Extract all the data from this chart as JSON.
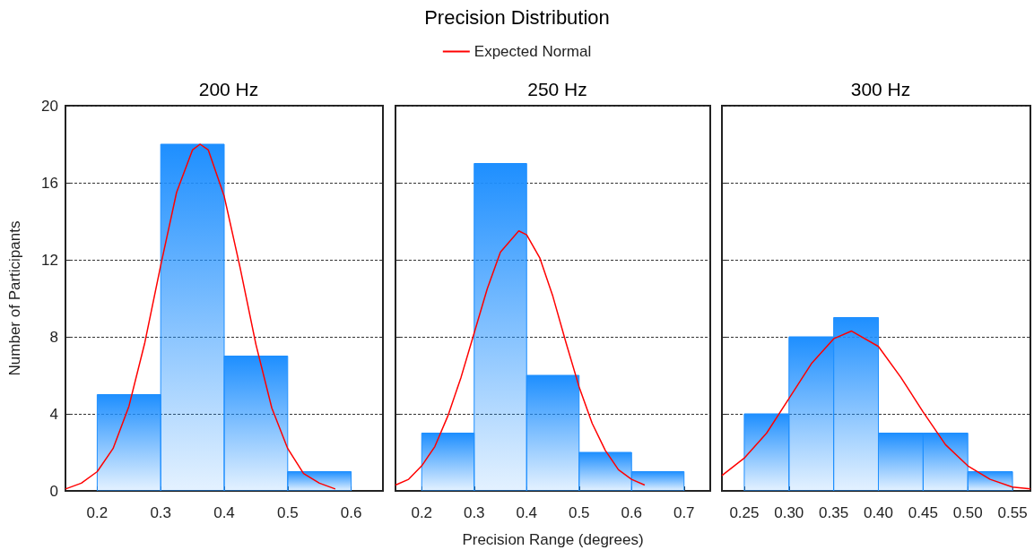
{
  "chart_data": [
    {
      "type": "histogram",
      "title": "200 Hz",
      "ylabel": "Number of Participants",
      "annotations": [
        "Precision Distribution"
      ],
      "legend": "top",
      "grid": "y",
      "xlim": [
        0.15,
        0.65
      ],
      "xticks": [
        0.2,
        0.3,
        0.4,
        0.5,
        0.6
      ],
      "ylim": [
        0,
        20
      ],
      "yticks": [
        0,
        4,
        8,
        12,
        16,
        20
      ],
      "series": [
        {
          "color": "#1e8fff",
          "bins": [
            0.2,
            0.3,
            0.4,
            0.5,
            0.6
          ],
          "values": [
            5,
            18,
            7,
            1
          ]
        },
        {
          "type": "line",
          "name": "Expected Normal",
          "color": "#ff0000",
          "x": [
            0.15,
            0.175,
            0.2,
            0.225,
            0.25,
            0.275,
            0.3,
            0.325,
            0.35,
            0.362,
            0.375,
            0.4,
            0.425,
            0.45,
            0.475,
            0.5,
            0.525,
            0.55,
            0.575
          ],
          "values": [
            0.1,
            0.4,
            1.0,
            2.2,
            4.4,
            7.7,
            11.7,
            15.5,
            17.7,
            18,
            17.7,
            15.3,
            11.6,
            7.6,
            4.3,
            2.2,
            0.9,
            0.4,
            0.1
          ]
        }
      ]
    },
    {
      "type": "histogram",
      "title": "250 Hz",
      "xlabel": "Precision Range (degrees)",
      "grid": "y",
      "tick_labels": "x",
      "xlim": [
        0.15,
        0.75
      ],
      "xticks": [
        0.2,
        0.3,
        0.4,
        0.5,
        0.6,
        0.7
      ],
      "ylim": [
        0,
        20
      ],
      "yticks": [
        0,
        4,
        8,
        12,
        16,
        20
      ],
      "series": [
        {
          "color": "#1e8fff",
          "bins": [
            0.2,
            0.3,
            0.4,
            0.5,
            0.6,
            0.7
          ],
          "values": [
            3,
            17,
            6,
            2,
            1
          ]
        },
        {
          "type": "line",
          "color": "#ff0000",
          "x": [
            0.15,
            0.175,
            0.2,
            0.225,
            0.25,
            0.275,
            0.3,
            0.325,
            0.35,
            0.385,
            0.4,
            0.425,
            0.45,
            0.475,
            0.5,
            0.525,
            0.55,
            0.575,
            0.6,
            0.625
          ],
          "values": [
            0.3,
            0.6,
            1.3,
            2.3,
            3.9,
            5.9,
            8.2,
            10.5,
            12.4,
            13.5,
            13.3,
            12.1,
            10.1,
            7.7,
            5.4,
            3.5,
            2.1,
            1.1,
            0.6,
            0.3
          ]
        }
      ]
    },
    {
      "type": "histogram",
      "title": "300 Hz",
      "grid": "y",
      "tick_labels": "x",
      "xlim": [
        0.225,
        0.57
      ],
      "xticks": [
        0.25,
        {
          "value": 0.3,
          "label": "0.30"
        },
        0.35,
        {
          "value": 0.4,
          "label": "0.40"
        },
        0.45,
        {
          "value": 0.5,
          "label": "0.50"
        },
        0.55
      ],
      "ylim": [
        0,
        20
      ],
      "yticks": [
        0,
        4,
        8,
        12,
        16,
        20
      ],
      "series": [
        {
          "color": "#1e8fff",
          "bins": [
            0.25,
            0.3,
            0.35,
            0.4,
            0.45,
            0.5,
            0.55
          ],
          "values": [
            4,
            8,
            9,
            3,
            3,
            1
          ]
        },
        {
          "type": "line",
          "color": "#ff0000",
          "x": [
            0.225,
            0.25,
            0.275,
            0.3,
            0.325,
            0.35,
            0.37,
            0.4,
            0.425,
            0.45,
            0.475,
            0.5,
            0.525,
            0.55,
            0.57
          ],
          "values": [
            0.8,
            1.7,
            3.0,
            4.8,
            6.6,
            7.9,
            8.3,
            7.5,
            5.9,
            4.1,
            2.4,
            1.3,
            0.6,
            0.2,
            0.1
          ]
        }
      ]
    }
  ]
}
